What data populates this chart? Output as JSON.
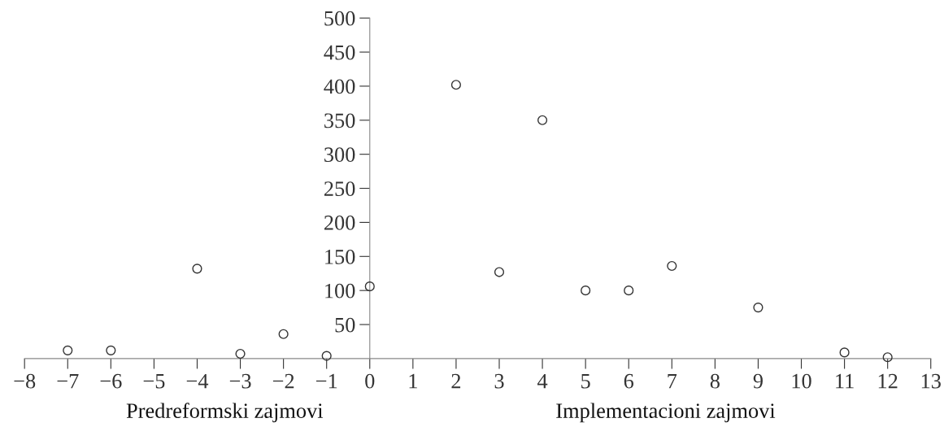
{
  "chart_data": {
    "type": "scatter",
    "x": [
      -7,
      -6,
      -4,
      -3,
      -2,
      -1,
      0,
      2,
      3,
      4,
      5,
      6,
      7,
      9,
      11,
      12
    ],
    "values": [
      12,
      12,
      132,
      7,
      36,
      4,
      106,
      402,
      127,
      350,
      100,
      100,
      136,
      75,
      9,
      2
    ],
    "color": "#333333",
    "marker": "circle",
    "xlim": [
      -8,
      13
    ],
    "xticks": [
      {
        "value": -8,
        "label": "−8"
      },
      {
        "value": -7,
        "label": "−7"
      },
      {
        "value": -6,
        "label": "−6"
      },
      {
        "value": -5,
        "label": "−5"
      },
      {
        "value": -4,
        "label": "−4"
      },
      {
        "value": -3,
        "label": "−3"
      },
      {
        "value": -2,
        "label": "−2"
      },
      {
        "value": -1,
        "label": "−1"
      },
      0,
      1,
      2,
      3,
      4,
      5,
      6,
      7,
      8,
      9,
      10,
      11,
      12,
      13
    ],
    "ylim": [
      0,
      500
    ],
    "yticks": [
      50,
      100,
      150,
      200,
      250,
      300,
      350,
      400,
      450,
      500
    ],
    "grid": false,
    "annotations": [
      "Predreformski zajmovi",
      "Implementacioni zajmovi"
    ]
  }
}
